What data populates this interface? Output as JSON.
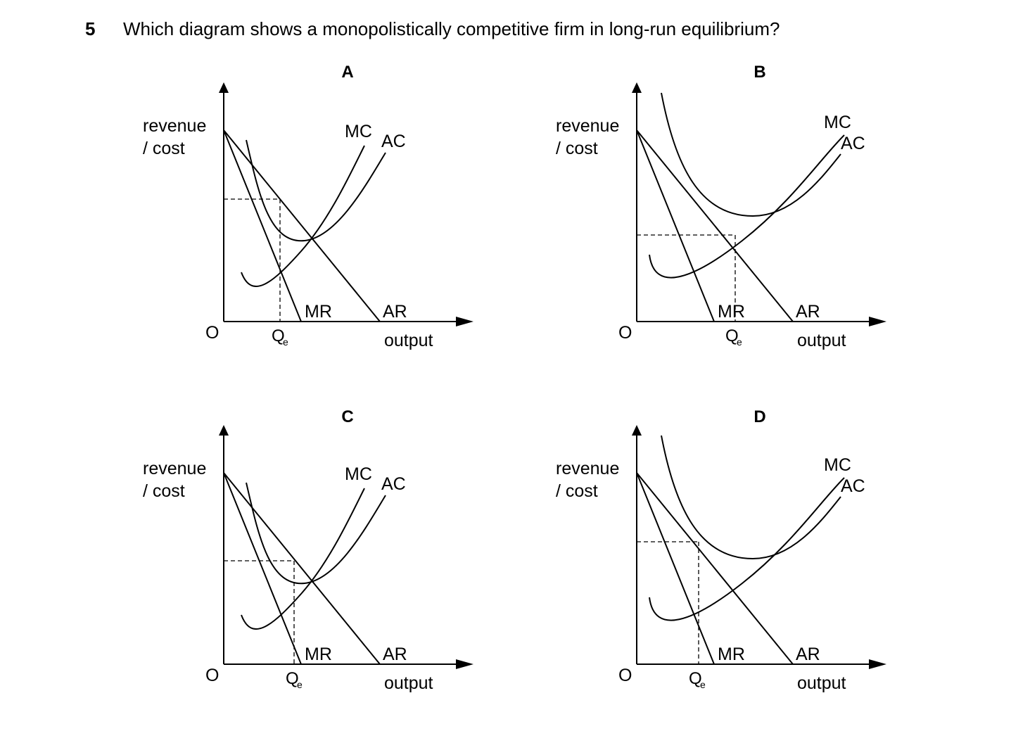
{
  "question": {
    "number": "5",
    "text": "Which diagram shows a monopolistically competitive firm in long-run equilibrium?"
  },
  "common": {
    "ylabel_line1": "revenue",
    "ylabel_line2": "/ cost",
    "origin": "O",
    "xlabel": "output",
    "mc": "MC",
    "ac": "AC",
    "mr": "MR",
    "ar": "AR",
    "qe_main": "Q",
    "qe_sub": "e"
  },
  "options": [
    {
      "label": "A"
    },
    {
      "label": "B"
    },
    {
      "label": "C"
    },
    {
      "label": "D"
    }
  ]
}
